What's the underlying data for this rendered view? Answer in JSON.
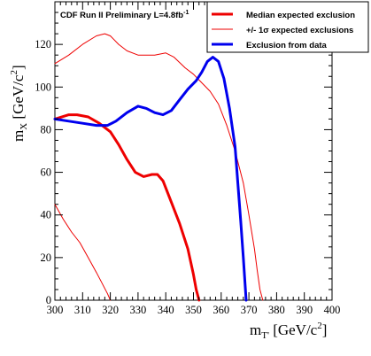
{
  "chart_data": {
    "type": "line",
    "run_label": "CDF Run II Preliminary L=4.8fb",
    "run_label_sup": "-1",
    "xlabel": "m",
    "xlabel_sub": "T'",
    "xlabel_unit": "[GeV/c",
    "xlabel_unit_sup": "2",
    "xlabel_unit_end": "]",
    "ylabel": "m",
    "ylabel_sub": "X",
    "ylabel_unit": "[GeV/c",
    "ylabel_unit_sup": "2",
    "ylabel_unit_end": "]",
    "xlim": [
      300,
      400
    ],
    "ylim": [
      0,
      140
    ],
    "x_ticks": [
      300,
      310,
      320,
      330,
      340,
      350,
      360,
      370,
      380,
      390,
      400
    ],
    "y_ticks": [
      0,
      20,
      40,
      60,
      80,
      100,
      120
    ],
    "legend_position": "top-right",
    "colors": {
      "red": "#ee0000",
      "blue": "#0000ee"
    },
    "legend": [
      {
        "label": "Median expected exclusion",
        "color": "#ee0000",
        "style": "thick"
      },
      {
        "label": "+/- 1σ expected exclusions",
        "color": "#ee0000",
        "style": "thin"
      },
      {
        "label": "Exclusion from data",
        "color": "#0000ee",
        "style": "thick"
      }
    ],
    "series": [
      {
        "color": "#ee0000",
        "width": 3,
        "points": [
          [
            300,
            85
          ],
          [
            305,
            87
          ],
          [
            308,
            87
          ],
          [
            312,
            86
          ],
          [
            316,
            83
          ],
          [
            320,
            79
          ],
          [
            323,
            73
          ],
          [
            326,
            66
          ],
          [
            329,
            60
          ],
          [
            332,
            58
          ],
          [
            335,
            59
          ],
          [
            337,
            59
          ],
          [
            339,
            56
          ],
          [
            342,
            46
          ],
          [
            345,
            36
          ],
          [
            348,
            24
          ],
          [
            350,
            12
          ],
          [
            351,
            5
          ],
          [
            352,
            0
          ]
        ]
      },
      {
        "color": "#ee0000",
        "width": 1,
        "points": [
          [
            300,
            111
          ],
          [
            305,
            115
          ],
          [
            310,
            120
          ],
          [
            315,
            124
          ],
          [
            318,
            125
          ],
          [
            320,
            124
          ],
          [
            323,
            120
          ],
          [
            326,
            117
          ],
          [
            330,
            115
          ],
          [
            333,
            115
          ],
          [
            336,
            115
          ],
          [
            340,
            116
          ],
          [
            343,
            114
          ],
          [
            347,
            109
          ],
          [
            350,
            106
          ],
          [
            353,
            102
          ],
          [
            356,
            98
          ],
          [
            359,
            92
          ],
          [
            362,
            82
          ],
          [
            365,
            70
          ],
          [
            368,
            55
          ],
          [
            370,
            40
          ],
          [
            372,
            24
          ],
          [
            373,
            14
          ],
          [
            374,
            5
          ],
          [
            375,
            0
          ]
        ]
      },
      {
        "color": "#ee0000",
        "width": 1,
        "points": [
          [
            300,
            45
          ],
          [
            303,
            38
          ],
          [
            306,
            32
          ],
          [
            309,
            27
          ],
          [
            312,
            20
          ],
          [
            315,
            13
          ],
          [
            317,
            8
          ],
          [
            319,
            3
          ],
          [
            320,
            0
          ]
        ]
      },
      {
        "color": "#0000ee",
        "width": 3,
        "points": [
          [
            300,
            85
          ],
          [
            305,
            84
          ],
          [
            310,
            83
          ],
          [
            315,
            82
          ],
          [
            319,
            82
          ],
          [
            322,
            84
          ],
          [
            326,
            88
          ],
          [
            330,
            91
          ],
          [
            333,
            90
          ],
          [
            336,
            88
          ],
          [
            339,
            87
          ],
          [
            342,
            89
          ],
          [
            345,
            94
          ],
          [
            348,
            99
          ],
          [
            351,
            103
          ],
          [
            353,
            107
          ],
          [
            355,
            112
          ],
          [
            357,
            114
          ],
          [
            359,
            112
          ],
          [
            361,
            104
          ],
          [
            363,
            90
          ],
          [
            365,
            72
          ],
          [
            366,
            55
          ],
          [
            367,
            38
          ],
          [
            368,
            20
          ],
          [
            368.6,
            8
          ],
          [
            369,
            0
          ]
        ]
      }
    ]
  }
}
